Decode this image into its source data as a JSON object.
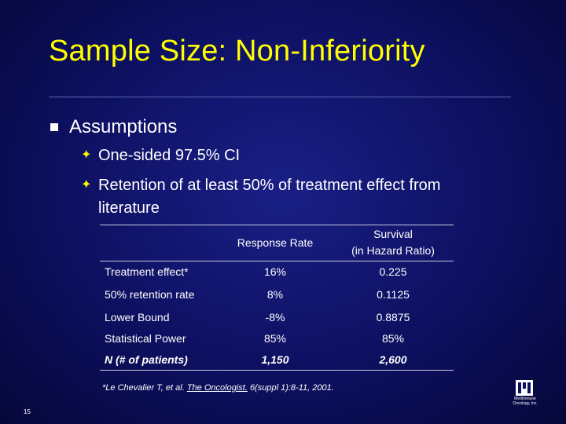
{
  "slide": {
    "title": "Sample Size: Non-Inferiority",
    "page_number": "15"
  },
  "bullets": {
    "main": "Assumptions",
    "sub1": "One-sided 97.5% CI",
    "sub2_line1": "Retention of at least 50% of treatment effect from",
    "sub2_line2": "literature",
    "sub_marker": "✦"
  },
  "table": {
    "headers": {
      "col1": "Response Rate",
      "col2_line1": "Survival",
      "col2_line2": "(in Hazard Ratio)"
    },
    "rows": [
      {
        "label": "Treatment effect*",
        "response": "16%",
        "survival": "0.225"
      },
      {
        "label": "50% retention rate",
        "response": "8%",
        "survival": "0.1125"
      },
      {
        "label": "Lower Bound",
        "response": "-8%",
        "survival": "0.8875"
      },
      {
        "label": "Statistical Power",
        "response": "85%",
        "survival": "85%"
      },
      {
        "label": "N (# of patients)",
        "response": "1,150",
        "survival": "2,600"
      }
    ]
  },
  "footnote": {
    "prefix": "*Le Chevalier T, et al.",
    "journal": "The Oncologist.",
    "suffix": "6(suppl 1):8-11, 2001."
  },
  "logo": {
    "line1": "MedImmune",
    "line2": "Oncology, Inc."
  },
  "colors": {
    "title": "#ffff00",
    "background": "#0d1060",
    "text": "#ffffff"
  }
}
